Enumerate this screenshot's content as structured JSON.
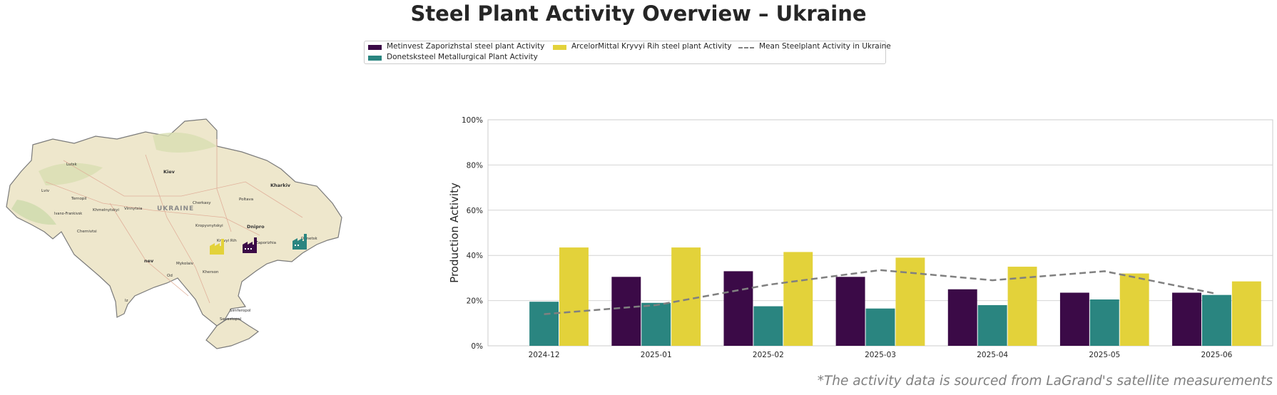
{
  "title": "Steel Plant Activity Overview – Ukraine",
  "source_note": "*The activity data is sourced from LaGrand's satellite measurements",
  "legend": [
    {
      "label": "Metinvest Zaporizhstal steel plant Activity",
      "color": "#3b0a47",
      "kind": "bar"
    },
    {
      "label": "Donetsksteel Metallurgical Plant Activity",
      "color": "#2a8580",
      "kind": "bar"
    },
    {
      "label": "ArcelorMittal Kryvyi Rih steel plant Activity",
      "color": "#e3d23a",
      "kind": "bar"
    },
    {
      "label": "Mean Steelplant Activity in Ukraine",
      "color": "#808080",
      "kind": "dash"
    }
  ],
  "map": {
    "country_label": "UKRAINE",
    "cities": [
      {
        "name": "Lutsk"
      },
      {
        "name": "Kiev"
      },
      {
        "name": "Kharkiv"
      },
      {
        "name": "Lviv"
      },
      {
        "name": "Ternopil"
      },
      {
        "name": "Khmelnytskyi"
      },
      {
        "name": "Vinnytsia"
      },
      {
        "name": "Cherkasy"
      },
      {
        "name": "Poltava"
      },
      {
        "name": "Ivano-Frankivsk"
      },
      {
        "name": "Chernivtsi"
      },
      {
        "name": "Kropyvnytskyi"
      },
      {
        "name": "Dnipro"
      },
      {
        "name": "Kryvyi Rih"
      },
      {
        "name": "Zaporizhia"
      },
      {
        "name": "Donetsk"
      },
      {
        "name": "Mykolaiv"
      },
      {
        "name": "Kherson"
      },
      {
        "name": "Simferopol"
      },
      {
        "name": "Sevastopol"
      },
      {
        "name": "nev"
      },
      {
        "name": "Od"
      },
      {
        "name": "Iz"
      }
    ],
    "plant_markers": [
      {
        "plant": "ArcelorMittal Kryvyi Rih steel plant",
        "icon": "factory-icon",
        "color": "#e3d23a"
      },
      {
        "plant": "Metinvest Zaporizhstal steel plant",
        "icon": "factory-icon",
        "color": "#3b0a47"
      },
      {
        "plant": "Donetsksteel Metallurgical Plant",
        "icon": "factory-icon",
        "color": "#2a8580"
      }
    ]
  },
  "chart_data": {
    "type": "bar",
    "ylabel": "Production Activity",
    "xlabel": "",
    "ylim": [
      0,
      100
    ],
    "yticks": [
      "0%",
      "20%",
      "40%",
      "60%",
      "80%",
      "100%"
    ],
    "grid": true,
    "categories": [
      "2024-12",
      "2025-01",
      "2025-02",
      "2025-03",
      "2025-04",
      "2025-05",
      "2025-06"
    ],
    "series": [
      {
        "name": "Metinvest Zaporizhstal steel plant Activity",
        "color": "#3b0a47",
        "values": [
          null,
          30.5,
          33,
          30.5,
          25,
          23.5,
          23.5
        ]
      },
      {
        "name": "Donetsksteel Metallurgical Plant Activity",
        "color": "#2a8580",
        "values": [
          19.5,
          19,
          17.5,
          16.5,
          18,
          20.5,
          22.5
        ]
      },
      {
        "name": "ArcelorMittal Kryvyi Rih steel plant Activity",
        "color": "#e3d23a",
        "values": [
          43.5,
          43.5,
          41.5,
          39,
          35,
          32,
          28.5
        ]
      }
    ],
    "mean_line": {
      "name": "Mean Steelplant Activity in Ukraine",
      "color": "#808080",
      "values": [
        14,
        18,
        27,
        33.5,
        29,
        33,
        23
      ]
    }
  }
}
